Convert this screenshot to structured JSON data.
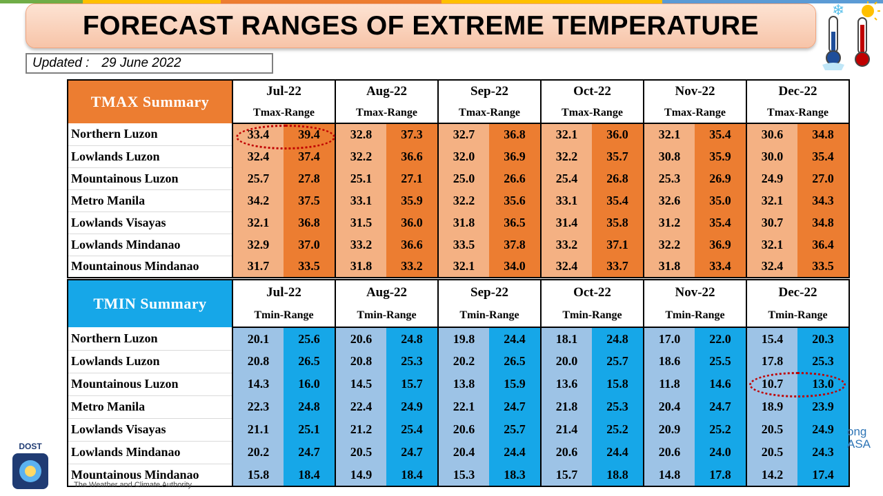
{
  "title": "FORECAST RANGES OF EXTREME TEMPERATURE",
  "updated": {
    "label": "Updated :",
    "date": "29 June 2022"
  },
  "months": [
    "Jul-22",
    "Aug-22",
    "Sep-22",
    "Oct-22",
    "Nov-22",
    "Dec-22"
  ],
  "regions": [
    "Northern Luzon",
    "Lowlands Luzon",
    "Mountainous Luzon",
    "Metro Manila",
    "Lowlands Visayas",
    "Lowlands Mindanao",
    "Mountainous Mindanao"
  ],
  "tmax": {
    "heading": "TMAX Summary",
    "subheader": "Tmax-Range",
    "rows": [
      [
        [
          "33.4",
          "39.4"
        ],
        [
          "32.8",
          "37.3"
        ],
        [
          "32.7",
          "36.8"
        ],
        [
          "32.1",
          "36.0"
        ],
        [
          "32.1",
          "35.4"
        ],
        [
          "30.6",
          "34.8"
        ]
      ],
      [
        [
          "32.4",
          "37.4"
        ],
        [
          "32.2",
          "36.6"
        ],
        [
          "32.0",
          "36.9"
        ],
        [
          "32.2",
          "35.7"
        ],
        [
          "30.8",
          "35.9"
        ],
        [
          "30.0",
          "35.4"
        ]
      ],
      [
        [
          "25.7",
          "27.8"
        ],
        [
          "25.1",
          "27.1"
        ],
        [
          "25.0",
          "26.6"
        ],
        [
          "25.4",
          "26.8"
        ],
        [
          "25.3",
          "26.9"
        ],
        [
          "24.9",
          "27.0"
        ]
      ],
      [
        [
          "34.2",
          "37.5"
        ],
        [
          "33.1",
          "35.9"
        ],
        [
          "32.2",
          "35.6"
        ],
        [
          "33.1",
          "35.4"
        ],
        [
          "32.6",
          "35.0"
        ],
        [
          "32.1",
          "34.3"
        ]
      ],
      [
        [
          "32.1",
          "36.8"
        ],
        [
          "31.5",
          "36.0"
        ],
        [
          "31.8",
          "36.5"
        ],
        [
          "31.4",
          "35.8"
        ],
        [
          "31.2",
          "35.4"
        ],
        [
          "30.7",
          "34.8"
        ]
      ],
      [
        [
          "32.9",
          "37.0"
        ],
        [
          "33.2",
          "36.6"
        ],
        [
          "33.5",
          "37.8"
        ],
        [
          "33.2",
          "37.1"
        ],
        [
          "32.2",
          "36.9"
        ],
        [
          "32.1",
          "36.4"
        ]
      ],
      [
        [
          "31.7",
          "33.5"
        ],
        [
          "31.8",
          "33.2"
        ],
        [
          "32.1",
          "34.0"
        ],
        [
          "32.4",
          "33.7"
        ],
        [
          "31.8",
          "33.4"
        ],
        [
          "32.4",
          "33.5"
        ]
      ]
    ]
  },
  "tmin": {
    "heading": "TMIN Summary",
    "subheader": "Tmin-Range",
    "rows": [
      [
        [
          "20.1",
          "25.6"
        ],
        [
          "20.6",
          "24.8"
        ],
        [
          "19.8",
          "24.4"
        ],
        [
          "18.1",
          "24.8"
        ],
        [
          "17.0",
          "22.0"
        ],
        [
          "15.4",
          "20.3"
        ]
      ],
      [
        [
          "20.8",
          "26.5"
        ],
        [
          "20.8",
          "25.3"
        ],
        [
          "20.2",
          "26.5"
        ],
        [
          "20.0",
          "25.7"
        ],
        [
          "18.6",
          "25.5"
        ],
        [
          "17.8",
          "25.3"
        ]
      ],
      [
        [
          "14.3",
          "16.0"
        ],
        [
          "14.5",
          "15.7"
        ],
        [
          "13.8",
          "15.9"
        ],
        [
          "13.6",
          "15.8"
        ],
        [
          "11.8",
          "14.6"
        ],
        [
          "10.7",
          "13.0"
        ]
      ],
      [
        [
          "22.3",
          "24.8"
        ],
        [
          "22.4",
          "24.9"
        ],
        [
          "22.1",
          "24.7"
        ],
        [
          "21.8",
          "25.3"
        ],
        [
          "20.4",
          "24.7"
        ],
        [
          "18.9",
          "23.9"
        ]
      ],
      [
        [
          "21.1",
          "25.1"
        ],
        [
          "21.2",
          "25.4"
        ],
        [
          "20.6",
          "25.7"
        ],
        [
          "21.4",
          "25.2"
        ],
        [
          "20.9",
          "25.2"
        ],
        [
          "20.5",
          "24.9"
        ]
      ],
      [
        [
          "20.2",
          "24.7"
        ],
        [
          "20.5",
          "24.7"
        ],
        [
          "20.4",
          "24.4"
        ],
        [
          "20.6",
          "24.4"
        ],
        [
          "20.6",
          "24.0"
        ],
        [
          "20.5",
          "24.3"
        ]
      ],
      [
        [
          "15.8",
          "18.4"
        ],
        [
          "14.9",
          "18.4"
        ],
        [
          "15.3",
          "18.3"
        ],
        [
          "15.7",
          "18.8"
        ],
        [
          "14.8",
          "17.8"
        ],
        [
          "14.2",
          "17.4"
        ]
      ]
    ]
  },
  "logos": {
    "dost": "DOST",
    "footer": "The Weather and Climate Authority",
    "right": "ong\nASA"
  },
  "colors": {
    "tmax_low": "#f4b183",
    "tmax_high": "#ec7d31",
    "tmin_low": "#9dc3e6",
    "tmin_high": "#16a7e8"
  }
}
